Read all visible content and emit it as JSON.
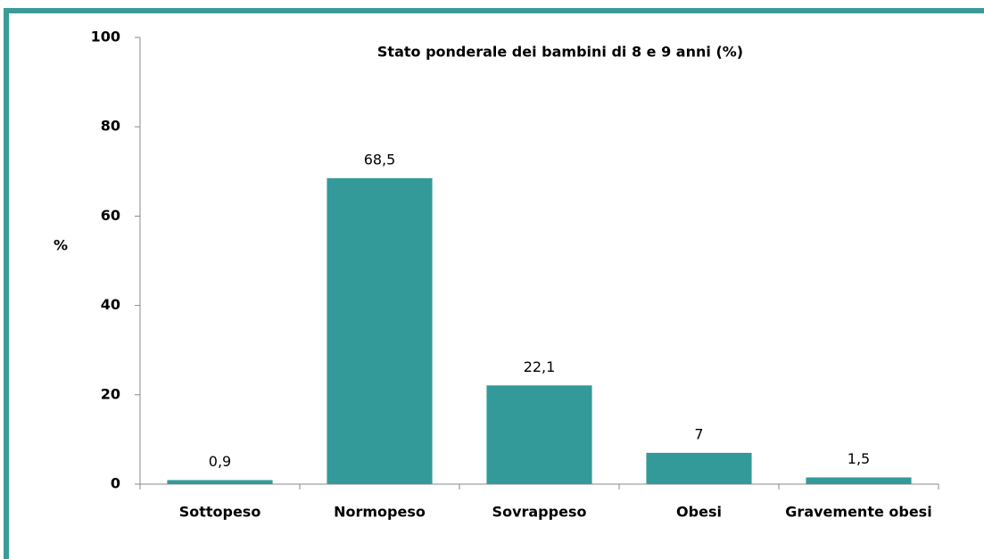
{
  "chart_data": {
    "type": "bar",
    "title": "Stato ponderale dei bambini di 8 e 9 anni (%)",
    "y_label": "%",
    "categories": [
      "Sottopeso",
      "Normopeso",
      "Sovrappeso",
      "Obesi",
      "Gravemente obesi"
    ],
    "values": [
      0.9,
      68.5,
      22.1,
      7,
      1.5
    ],
    "value_labels": [
      "0,9",
      "68,5",
      "22,1",
      "7",
      "1,5"
    ],
    "color": "#339a99",
    "ylim": [
      0,
      100
    ],
    "yticks": [
      0,
      20,
      40,
      60,
      80,
      100
    ],
    "grid": false
  }
}
